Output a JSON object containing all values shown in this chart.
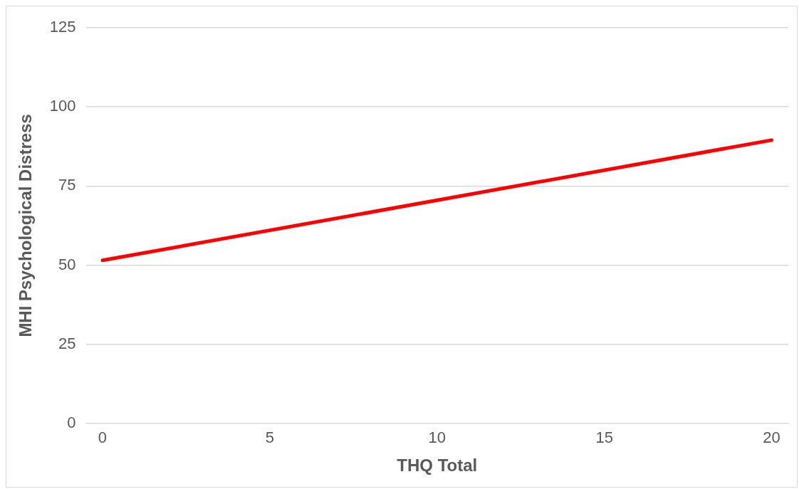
{
  "chart_data": {
    "type": "line",
    "xlabel": "THQ Total",
    "ylabel": "MHI Psychological Distress",
    "x": [
      0,
      20
    ],
    "series": [
      {
        "color": "#ff0000",
        "values": [
          51.5,
          89.5
        ]
      }
    ],
    "xlim": [
      -0.5,
      20.5
    ],
    "xticks": [
      0,
      5,
      10,
      15,
      20
    ],
    "ylim": [
      0,
      125
    ],
    "yticks": [
      0,
      25,
      50,
      75,
      100,
      125
    ],
    "grid": "y",
    "legend": false,
    "marker": "none",
    "line_style": "solid"
  }
}
